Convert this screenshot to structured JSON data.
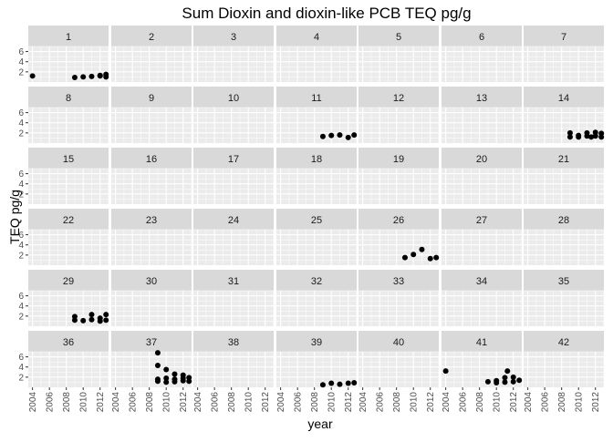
{
  "chart_data": {
    "type": "scatter",
    "title": "Sum Dioxin and dioxin-like PCB TEQ pg/g",
    "xlabel": "year",
    "ylabel": "TEQ pg/g",
    "facet_layout": "6 rows x 7 columns, shared axes",
    "xlim": [
      2003.5,
      2013.0
    ],
    "ylim": [
      0.0,
      7.0
    ],
    "x_ticks": [
      2004,
      2006,
      2008,
      2010,
      2012
    ],
    "y_ticks": [
      2,
      4,
      6
    ],
    "grid": true,
    "colors": {
      "panel_bg": "#ebebeb",
      "strip_bg": "#d9d9d9",
      "grid": "#ffffff",
      "point": "#000000",
      "axis_text": "#4d4d4d"
    },
    "panels": [
      {
        "label": "1",
        "points": [
          [
            2004,
            1.2
          ],
          [
            2009,
            0.9
          ],
          [
            2010,
            1.0
          ],
          [
            2011,
            1.1
          ],
          [
            2012,
            1.2
          ],
          [
            2012,
            1.3
          ],
          [
            2012.7,
            1.5
          ],
          [
            2012.7,
            1.0
          ]
        ]
      },
      {
        "label": "2",
        "points": []
      },
      {
        "label": "3",
        "points": []
      },
      {
        "label": "4",
        "points": []
      },
      {
        "label": "5",
        "points": []
      },
      {
        "label": "6",
        "points": []
      },
      {
        "label": "7",
        "points": []
      },
      {
        "label": "8",
        "points": []
      },
      {
        "label": "9",
        "points": []
      },
      {
        "label": "10",
        "points": []
      },
      {
        "label": "11",
        "points": [
          [
            2009,
            1.3
          ],
          [
            2010,
            1.5
          ],
          [
            2011,
            1.6
          ],
          [
            2012,
            1.1
          ],
          [
            2012.7,
            1.6
          ]
        ]
      },
      {
        "label": "12",
        "points": []
      },
      {
        "label": "13",
        "points": []
      },
      {
        "label": "14",
        "points": [
          [
            2009,
            2.0
          ],
          [
            2009,
            1.2
          ],
          [
            2010,
            1.5
          ],
          [
            2010,
            1.2
          ],
          [
            2011,
            1.4
          ],
          [
            2011,
            2.0
          ],
          [
            2011.5,
            1.2
          ],
          [
            2012,
            2.1
          ],
          [
            2012,
            1.4
          ],
          [
            2012.7,
            1.9
          ],
          [
            2012.7,
            1.2
          ]
        ]
      },
      {
        "label": "15",
        "points": []
      },
      {
        "label": "16",
        "points": []
      },
      {
        "label": "17",
        "points": []
      },
      {
        "label": "18",
        "points": []
      },
      {
        "label": "19",
        "points": []
      },
      {
        "label": "20",
        "points": []
      },
      {
        "label": "21",
        "points": []
      },
      {
        "label": "22",
        "points": []
      },
      {
        "label": "23",
        "points": []
      },
      {
        "label": "24",
        "points": []
      },
      {
        "label": "25",
        "points": []
      },
      {
        "label": "26",
        "points": [
          [
            2009,
            1.5
          ],
          [
            2010,
            2.1
          ],
          [
            2011,
            3.1
          ],
          [
            2012,
            1.3
          ],
          [
            2012.7,
            1.5
          ]
        ]
      },
      {
        "label": "27",
        "points": []
      },
      {
        "label": "28",
        "points": []
      },
      {
        "label": "29",
        "points": [
          [
            2009,
            1.9
          ],
          [
            2009,
            1.2
          ],
          [
            2010,
            1.1
          ],
          [
            2011,
            1.3
          ],
          [
            2011,
            2.3
          ],
          [
            2012,
            1.6
          ],
          [
            2012,
            1.0
          ],
          [
            2012.7,
            2.3
          ],
          [
            2012.7,
            1.2
          ]
        ]
      },
      {
        "label": "30",
        "points": []
      },
      {
        "label": "31",
        "points": []
      },
      {
        "label": "32",
        "points": []
      },
      {
        "label": "33",
        "points": []
      },
      {
        "label": "34",
        "points": []
      },
      {
        "label": "35",
        "points": []
      },
      {
        "label": "36",
        "points": []
      },
      {
        "label": "37",
        "points": [
          [
            2009,
            6.8
          ],
          [
            2009,
            4.3
          ],
          [
            2009,
            1.6
          ],
          [
            2009,
            1.2
          ],
          [
            2010,
            3.5
          ],
          [
            2010,
            1.8
          ],
          [
            2010,
            1.0
          ],
          [
            2011,
            2.6
          ],
          [
            2011,
            1.6
          ],
          [
            2011,
            1.1
          ],
          [
            2012,
            2.4
          ],
          [
            2012,
            1.8
          ],
          [
            2012,
            1.3
          ],
          [
            2012.7,
            1.9
          ],
          [
            2012.7,
            1.2
          ]
        ]
      },
      {
        "label": "38",
        "points": []
      },
      {
        "label": "39",
        "points": [
          [
            2009,
            0.5
          ],
          [
            2010,
            0.8
          ],
          [
            2011,
            0.6
          ],
          [
            2012,
            0.8
          ],
          [
            2012.7,
            0.9
          ]
        ]
      },
      {
        "label": "40",
        "points": []
      },
      {
        "label": "41",
        "points": [
          [
            2004,
            3.2
          ],
          [
            2009,
            1.1
          ],
          [
            2010,
            1.3
          ],
          [
            2010,
            0.9
          ],
          [
            2011,
            1.9
          ],
          [
            2011,
            1.0
          ],
          [
            2011.3,
            3.2
          ],
          [
            2012,
            2.0
          ],
          [
            2012,
            1.1
          ],
          [
            2012.7,
            1.4
          ]
        ]
      },
      {
        "label": "42",
        "points": []
      }
    ]
  }
}
